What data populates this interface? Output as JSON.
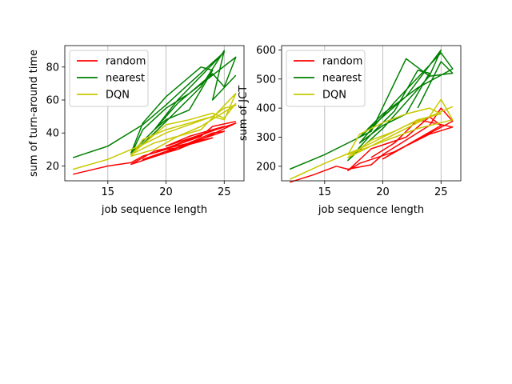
{
  "chart_data": [
    {
      "type": "line",
      "xlabel": "job sequence length",
      "ylabel": "sum of turn-around time",
      "xlim": [
        11.3,
        26.7
      ],
      "ylim": [
        11,
        93
      ],
      "xticks": [
        15,
        20,
        25
      ],
      "yticks": [
        20,
        40,
        60,
        80
      ],
      "grid": "vertical",
      "legend": "top-left",
      "series": [
        {
          "name": "random",
          "color": "#ff0000",
          "x": [
            12,
            15,
            17,
            18,
            19,
            20,
            21,
            22,
            23,
            24,
            19,
            17,
            20,
            22,
            23,
            24,
            25,
            18,
            21,
            23,
            26,
            20,
            22,
            24,
            25,
            19,
            21,
            23,
            24,
            26
          ],
          "y": [
            15,
            20,
            22,
            26,
            28,
            30,
            31,
            33,
            35,
            37,
            29,
            21,
            28,
            34,
            37,
            40,
            41,
            24,
            30,
            36,
            46,
            32,
            38,
            42,
            44,
            28,
            33,
            38,
            44,
            47
          ]
        },
        {
          "name": "nearest",
          "color": "#008000",
          "x": [
            12,
            15,
            18,
            20,
            22,
            25,
            21,
            19,
            17,
            18,
            20,
            23,
            24,
            22,
            20,
            19,
            21,
            24,
            25,
            26,
            22,
            20,
            18,
            17,
            19,
            21,
            23,
            25,
            24,
            26
          ],
          "y": [
            25,
            32,
            45,
            57,
            70,
            89,
            60,
            42,
            28,
            46,
            62,
            80,
            78,
            54,
            48,
            42,
            58,
            76,
            68,
            86,
            64,
            55,
            42,
            27,
            40,
            54,
            68,
            90,
            60,
            75
          ]
        },
        {
          "name": "DQN",
          "color": "#c8c800",
          "x": [
            12,
            15,
            18,
            20,
            22,
            24,
            25,
            26,
            23,
            21,
            19,
            17,
            18,
            20,
            22,
            24,
            25,
            26,
            23,
            21,
            19,
            17,
            20,
            22,
            24,
            25,
            26
          ],
          "y": [
            18,
            24,
            33,
            40,
            45,
            50,
            48,
            64,
            42,
            38,
            30,
            26,
            36,
            42,
            46,
            50,
            55,
            57,
            44,
            38,
            34,
            27,
            45,
            48,
            52,
            49,
            58
          ]
        }
      ]
    },
    {
      "type": "line",
      "xlabel": "job sequence length",
      "ylabel": "sum of JCT",
      "xlim": [
        11.3,
        26.7
      ],
      "ylim": [
        150,
        615
      ],
      "xticks": [
        15,
        20,
        25
      ],
      "yticks": [
        200,
        300,
        400,
        500,
        600
      ],
      "grid": "vertical",
      "legend": "top-left",
      "series": [
        {
          "name": "random",
          "color": "#ff0000",
          "x": [
            12,
            14,
            16,
            17,
            19,
            20,
            22,
            24,
            25,
            26,
            21,
            18,
            17,
            19,
            22,
            24,
            25,
            20,
            22,
            24,
            26,
            23,
            21,
            19
          ],
          "y": [
            145,
            170,
            200,
            190,
            205,
            240,
            290,
            340,
            400,
            355,
            250,
            210,
            185,
            260,
            300,
            370,
            340,
            225,
            270,
            310,
            335,
            360,
            280,
            230
          ]
        },
        {
          "name": "nearest",
          "color": "#008000",
          "x": [
            12,
            15,
            18,
            20,
            22,
            25,
            24,
            20,
            17,
            19,
            21,
            23,
            24,
            22,
            20,
            18,
            21,
            25,
            26,
            23,
            20,
            18,
            19,
            22,
            24,
            26,
            25,
            23
          ],
          "y": [
            190,
            240,
            300,
            370,
            440,
            600,
            510,
            330,
            220,
            310,
            390,
            530,
            520,
            380,
            340,
            280,
            420,
            590,
            535,
            470,
            380,
            300,
            320,
            570,
            510,
            520,
            560,
            400
          ]
        },
        {
          "name": "DQN",
          "color": "#c8c800",
          "x": [
            12,
            15,
            18,
            20,
            22,
            24,
            25,
            26,
            23,
            21,
            19,
            17,
            18,
            20,
            22,
            24,
            25,
            23,
            21,
            19,
            17,
            22,
            24,
            26
          ],
          "y": [
            155,
            210,
            260,
            300,
            340,
            370,
            430,
            360,
            330,
            300,
            270,
            240,
            310,
            350,
            380,
            400,
            380,
            360,
            320,
            290,
            230,
            330,
            370,
            405
          ]
        }
      ]
    }
  ]
}
